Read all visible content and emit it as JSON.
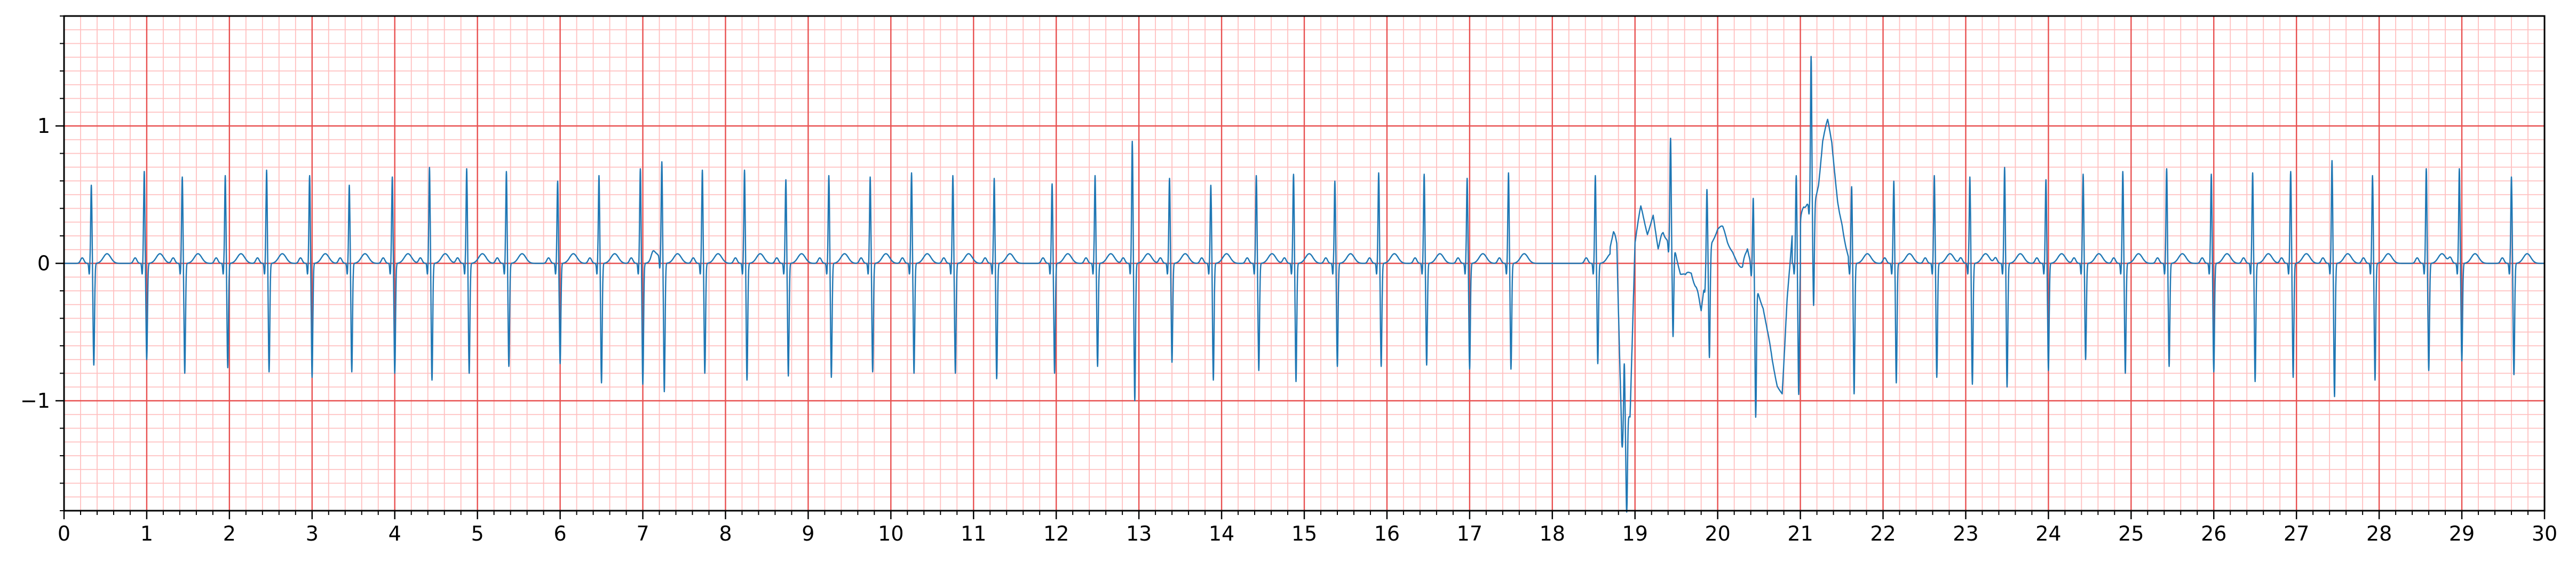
{
  "chart_data": {
    "type": "line",
    "title": "",
    "xlabel": "",
    "ylabel": "",
    "xlim": [
      0,
      30
    ],
    "ylim": [
      -1.8,
      1.8
    ],
    "x_ticks": [
      0,
      1,
      2,
      3,
      4,
      5,
      6,
      7,
      8,
      9,
      10,
      11,
      12,
      13,
      14,
      15,
      16,
      17,
      18,
      19,
      20,
      21,
      22,
      23,
      24,
      25,
      26,
      27,
      28,
      29,
      30
    ],
    "x_tick_labels": [
      "0",
      "1",
      "2",
      "3",
      "4",
      "5",
      "6",
      "7",
      "8",
      "9",
      "10",
      "11",
      "12",
      "13",
      "14",
      "15",
      "16",
      "17",
      "18",
      "19",
      "20",
      "21",
      "22",
      "23",
      "24",
      "25",
      "26",
      "27",
      "28",
      "29",
      "30"
    ],
    "y_ticks": [
      -1,
      0,
      1
    ],
    "y_tick_labels": [
      "−1",
      "0",
      "1"
    ],
    "grid": "ecg paper: major every 1 s / 1 unit, minor every 0.2 s / 0.1 unit",
    "colors": {
      "line": "#1f77b4",
      "major_grid": "#e85050",
      "minor_grid": "#ffc0c0",
      "axis": "#000000"
    },
    "series": [
      {
        "beats": [
          [
            0.33,
            0.57,
            -0.74
          ],
          [
            0.97,
            0.67,
            -0.7
          ],
          [
            1.43,
            0.63,
            -0.8
          ],
          [
            1.95,
            0.64,
            -0.76
          ],
          [
            2.45,
            0.68,
            -0.79
          ],
          [
            2.97,
            0.64,
            -0.83
          ],
          [
            3.45,
            0.57,
            -0.79
          ],
          [
            3.97,
            0.63,
            -0.8
          ],
          [
            4.42,
            0.7,
            -0.85
          ],
          [
            4.87,
            0.69,
            -0.8
          ],
          [
            5.35,
            0.67,
            -0.75
          ],
          [
            5.97,
            0.6,
            -0.73
          ],
          [
            6.47,
            0.64,
            -0.87
          ],
          [
            6.97,
            0.69,
            -0.88
          ],
          [
            7.23,
            0.72,
            -0.94
          ],
          [
            7.72,
            0.68,
            -0.8
          ],
          [
            8.23,
            0.68,
            -0.85
          ],
          [
            8.73,
            0.61,
            -0.82
          ],
          [
            9.25,
            0.64,
            -0.83
          ],
          [
            9.75,
            0.63,
            -0.79
          ],
          [
            10.25,
            0.66,
            -0.8
          ],
          [
            10.75,
            0.64,
            -0.8
          ],
          [
            11.25,
            0.62,
            -0.84
          ],
          [
            11.95,
            0.58,
            -0.8
          ],
          [
            12.47,
            0.64,
            -0.75
          ],
          [
            12.92,
            0.89,
            -1.0
          ],
          [
            13.37,
            0.62,
            -0.72
          ],
          [
            13.87,
            0.57,
            -0.85
          ],
          [
            14.42,
            0.64,
            -0.78
          ],
          [
            14.87,
            0.65,
            -0.86
          ],
          [
            15.37,
            0.6,
            -0.75
          ],
          [
            15.9,
            0.66,
            -0.75
          ],
          [
            16.45,
            0.65,
            -0.74
          ],
          [
            16.97,
            0.62,
            -0.77
          ],
          [
            17.47,
            0.66,
            -0.77
          ],
          [
            18.52,
            0.64,
            -0.73
          ],
          [
            18.87,
            0.58,
            -0.71
          ],
          [
            19.43,
            0.77,
            -0.65
          ],
          [
            19.87,
            0.56,
            -0.75
          ],
          [
            20.43,
            0.55,
            -0.97
          ],
          [
            20.95,
            0.64,
            -0.96
          ],
          [
            21.13,
            1.07,
            -0.72
          ],
          [
            21.62,
            0.56,
            -0.95
          ],
          [
            22.13,
            0.6,
            -0.87
          ],
          [
            22.62,
            0.64,
            -0.83
          ],
          [
            23.05,
            0.63,
            -0.88
          ],
          [
            23.47,
            0.7,
            -0.9
          ],
          [
            23.97,
            0.61,
            -0.78
          ],
          [
            24.42,
            0.65,
            -0.7
          ],
          [
            24.9,
            0.67,
            -0.8
          ],
          [
            25.43,
            0.69,
            -0.75
          ],
          [
            25.97,
            0.65,
            -0.79
          ],
          [
            26.47,
            0.66,
            -0.86
          ],
          [
            26.93,
            0.67,
            -0.83
          ],
          [
            27.43,
            0.75,
            -0.97
          ],
          [
            27.92,
            0.64,
            -0.85
          ],
          [
            28.57,
            0.69,
            -0.78
          ],
          [
            28.97,
            0.69,
            -0.71
          ],
          [
            29.6,
            0.63,
            -0.81
          ]
        ],
        "artifacts": [
          {
            "x": [
              18.7,
              18.74,
              18.78,
              18.81,
              18.84,
              18.87,
              18.9,
              18.94,
              19.0,
              19.07,
              19.15,
              19.22,
              19.28,
              19.34,
              19.42,
              19.48,
              19.55,
              19.61,
              19.68,
              19.74,
              19.8,
              19.86,
              19.93,
              20.0,
              20.06,
              20.12,
              20.18,
              20.24,
              20.3,
              20.36,
              20.42,
              20.48,
              20.55,
              20.6,
              20.66,
              20.72,
              20.78,
              20.84,
              20.9
            ],
            "y": [
              0.05,
              0.15,
              0.1,
              -0.6,
              -1.25,
              -1.31,
              -1.1,
              -1.12,
              0.12,
              0.35,
              0.2,
              0.35,
              0.1,
              0.2,
              0.15,
              0.1,
              -0.1,
              -0.15,
              -0.1,
              -0.2,
              -0.35,
              -0.05,
              0.15,
              0.22,
              0.2,
              0.12,
              0.08,
              0.0,
              -0.05,
              0.1,
              -0.05,
              -0.2,
              -0.35,
              -0.55,
              -0.75,
              -0.9,
              -0.95,
              -0.3,
              0.2
            ]
          },
          {
            "x": [
              21.0,
              21.04,
              21.08,
              21.16,
              21.22,
              21.27,
              21.33,
              21.38,
              21.45,
              21.52,
              21.58
            ],
            "y": [
              0.3,
              0.38,
              0.4,
              0.35,
              0.55,
              0.85,
              0.98,
              0.85,
              0.45,
              0.18,
              0.05
            ]
          }
        ]
      }
    ]
  }
}
